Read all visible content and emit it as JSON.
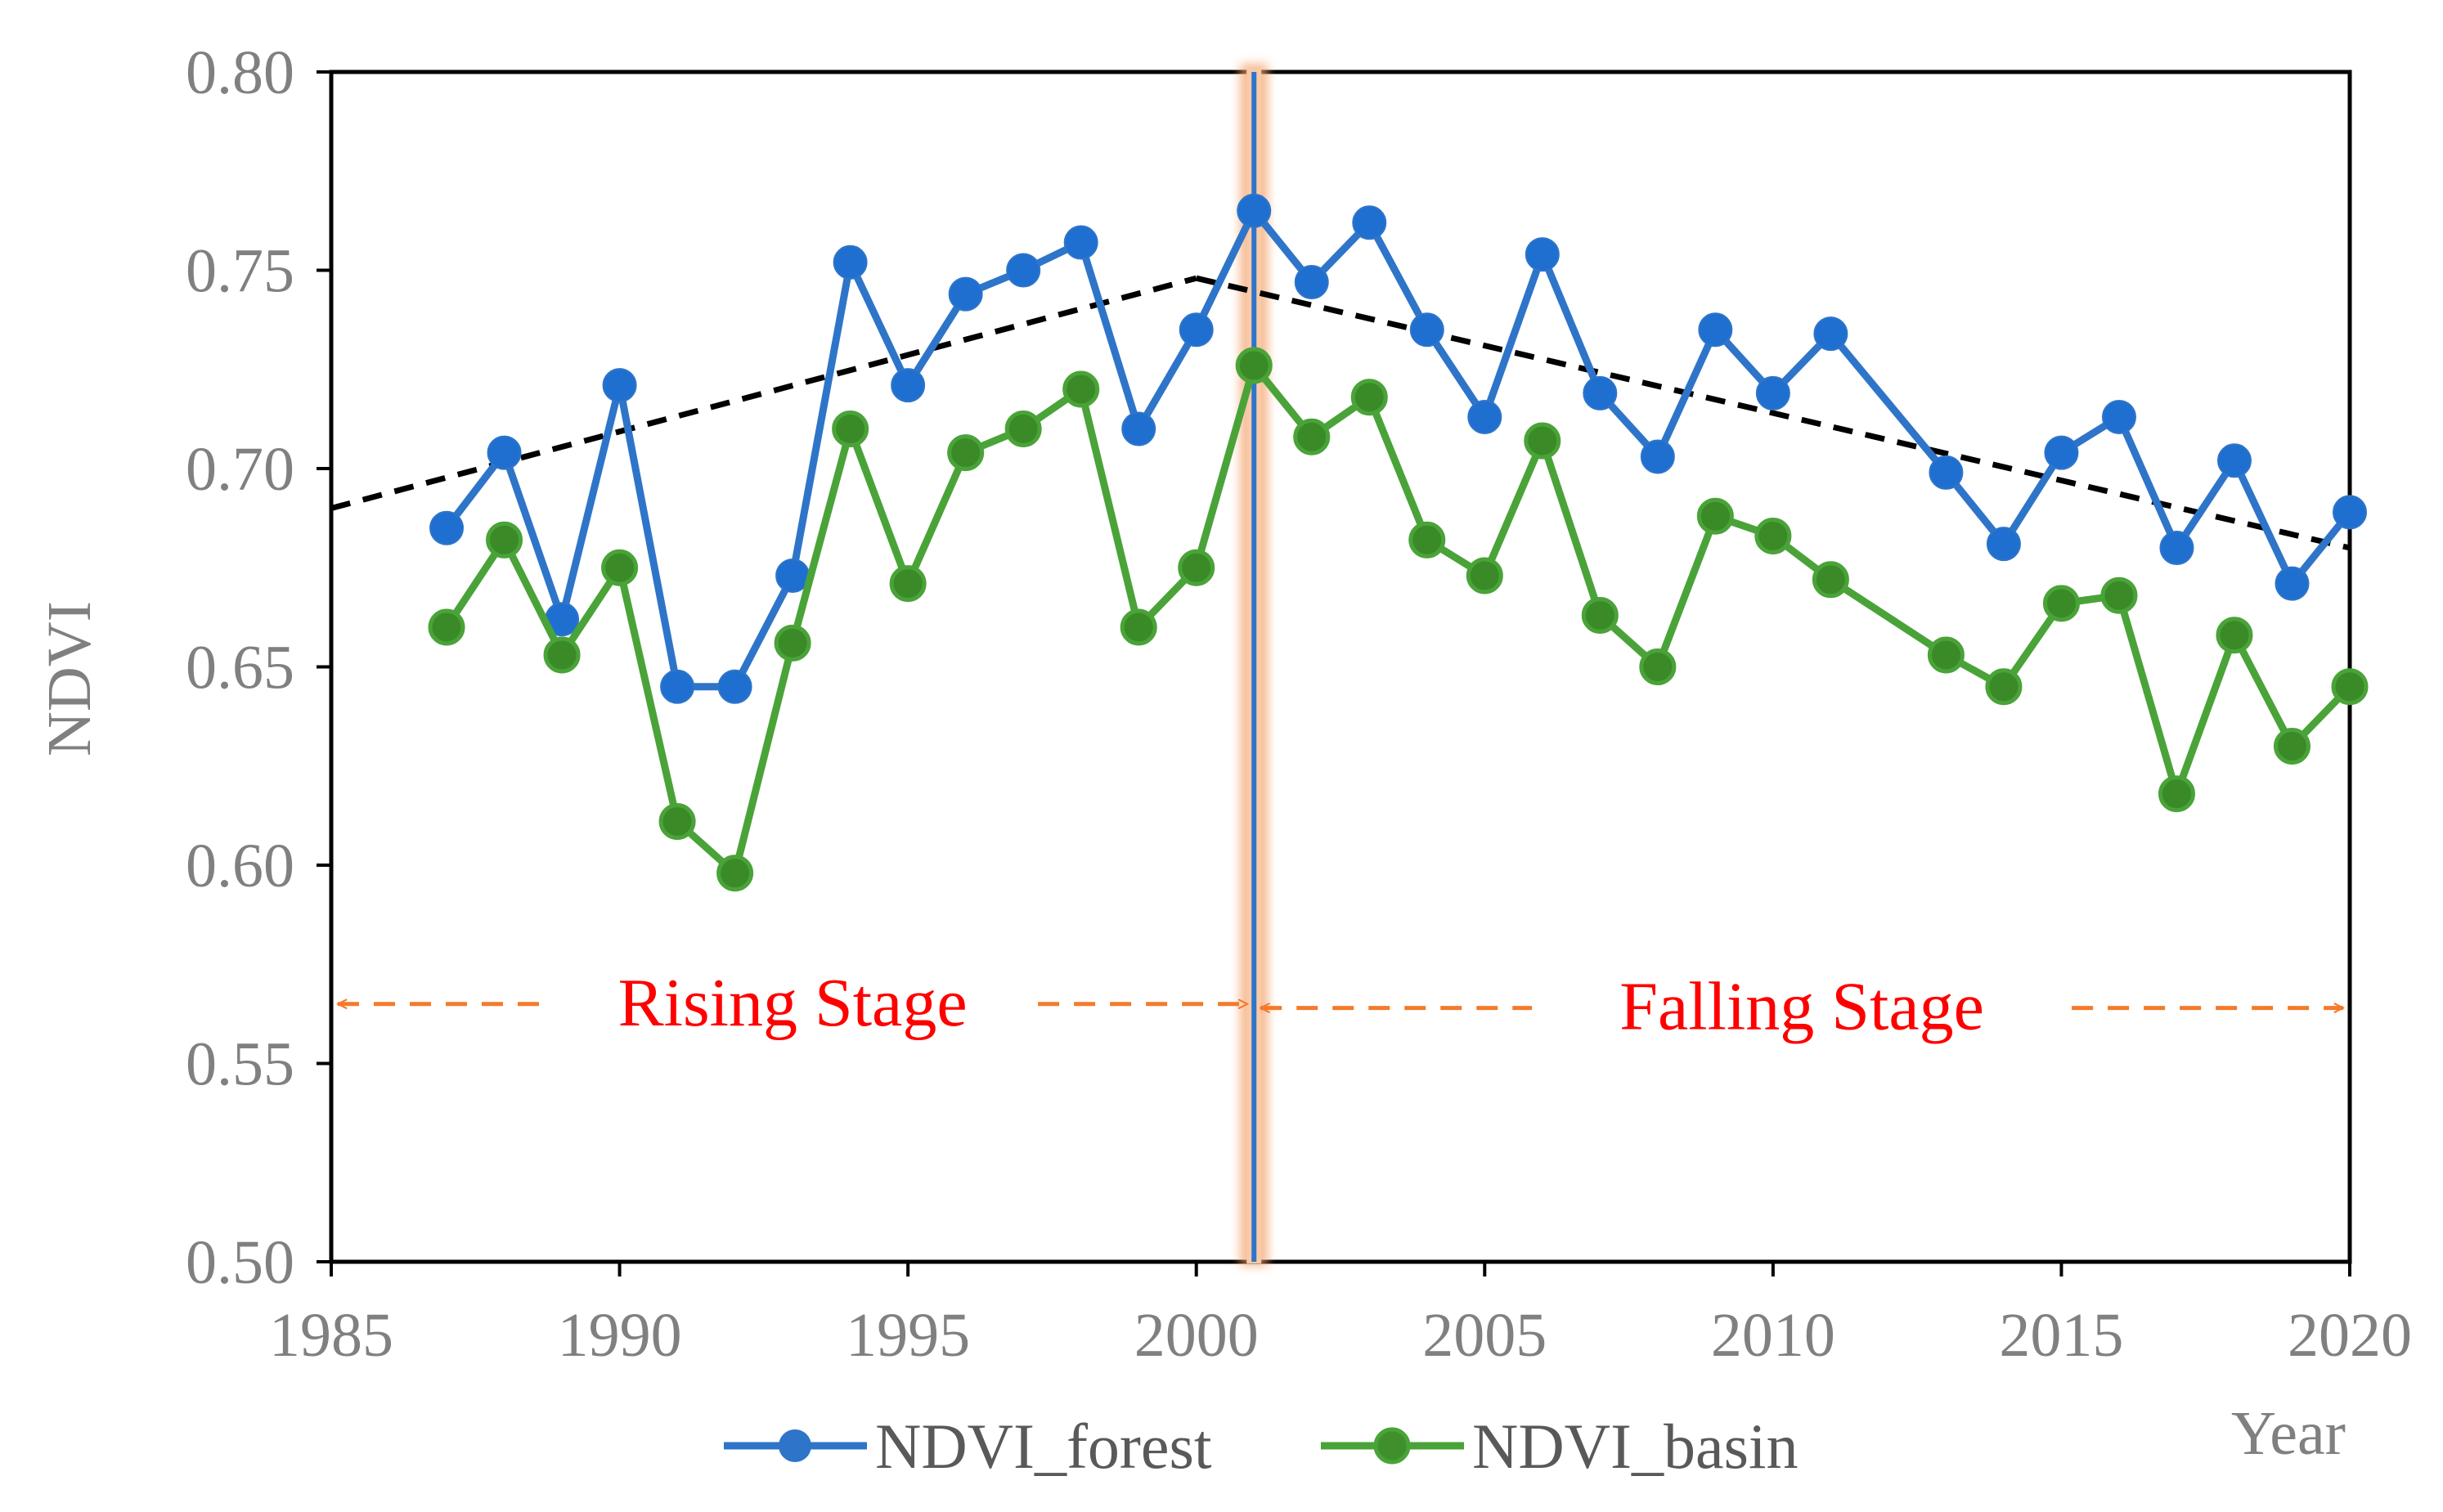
{
  "chart_data": {
    "type": "line",
    "xlabel": "Year",
    "ylabel": "NDVI",
    "xlim": [
      1985,
      2020
    ],
    "ylim": [
      0.5,
      0.8
    ],
    "xticks": [
      "1985",
      "1990",
      "1995",
      "2000",
      "2005",
      "2010",
      "2015",
      "2020"
    ],
    "yticks": [
      "0.50",
      "0.55",
      "0.60",
      "0.65",
      "0.70",
      "0.75",
      "0.80"
    ],
    "grid": false,
    "legend_position": "bottom",
    "series": [
      {
        "name": "NDVI_forest",
        "color": "#2e75c9",
        "x": [
          1987,
          1988,
          1989,
          1990,
          1991,
          1992,
          1993,
          1994,
          1995,
          1996,
          1997,
          1998,
          1999,
          2000,
          2001,
          2002,
          2003,
          2004,
          2005,
          2006,
          2007,
          2008,
          2009,
          2010,
          2011,
          2013,
          2014,
          2015,
          2016,
          2017,
          2018,
          2019,
          2020
        ],
        "y": [
          0.685,
          0.704,
          0.662,
          0.721,
          0.645,
          0.645,
          0.673,
          0.752,
          0.721,
          0.744,
          0.75,
          0.757,
          0.71,
          0.735,
          0.765,
          0.747,
          0.762,
          0.735,
          0.713,
          0.754,
          0.719,
          0.703,
          0.735,
          0.719,
          0.734,
          0.699,
          0.681,
          0.704,
          0.713,
          0.68,
          0.702,
          0.671,
          0.689
        ]
      },
      {
        "name": "NDVI_basin",
        "color": "#4aa338",
        "x": [
          1987,
          1988,
          1989,
          1990,
          1991,
          1992,
          1993,
          1994,
          1995,
          1996,
          1997,
          1998,
          1999,
          2000,
          2001,
          2002,
          2003,
          2004,
          2005,
          2006,
          2007,
          2008,
          2009,
          2010,
          2011,
          2013,
          2014,
          2015,
          2016,
          2017,
          2018,
          2019,
          2020
        ],
        "y": [
          0.66,
          0.682,
          0.653,
          0.675,
          0.611,
          0.598,
          0.656,
          0.71,
          0.671,
          0.704,
          0.71,
          0.72,
          0.66,
          0.675,
          0.726,
          0.708,
          0.718,
          0.682,
          0.673,
          0.707,
          0.663,
          0.65,
          0.688,
          0.683,
          0.672,
          0.653,
          0.645,
          0.666,
          0.668,
          0.618,
          0.658,
          0.63,
          0.645
        ]
      }
    ],
    "trend_lines": [
      {
        "color": "#000000",
        "style": "dashed",
        "x": [
          1985,
          2000
        ],
        "y": [
          0.69,
          0.748
        ]
      },
      {
        "color": "#000000",
        "style": "dashed",
        "x": [
          2000,
          2020
        ],
        "y": [
          0.748,
          0.68
        ]
      }
    ],
    "breakpoint": {
      "x": 2001,
      "color": "#2e75c9",
      "highlight_color": "#f4a26b"
    },
    "annotations": [
      {
        "text": "Rising Stage",
        "color": "#ff0000",
        "arrow_color": "#f47a2a",
        "x_start": 1985,
        "x_end": 2001,
        "y": 0.565
      },
      {
        "text": "Falling Stage",
        "color": "#ff0000",
        "arrow_color": "#f47a2a",
        "x_start": 2001,
        "x_end": 2020,
        "y": 0.564
      }
    ]
  }
}
